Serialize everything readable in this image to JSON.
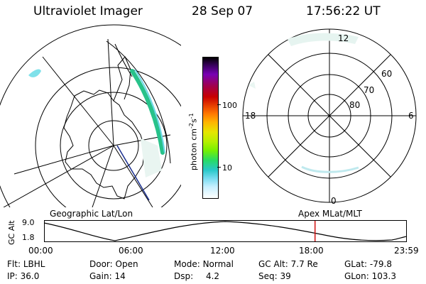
{
  "header": {
    "instrument": "Ultraviolet Imager",
    "date": "28 Sep 07",
    "time": "17:56:22 UT"
  },
  "geo_panel": {
    "title": "Geographic Lat/Lon"
  },
  "colorbar": {
    "unit_label": "photon cm",
    "unit_sup1": "-2",
    "unit_mid": "s",
    "unit_sup2": "-1",
    "tick_labels": [
      "100",
      "10"
    ],
    "colors": [
      "#000000",
      "#3c0064",
      "#7800b4",
      "#a00050",
      "#c80000",
      "#e63c00",
      "#ff7800",
      "#ffb400",
      "#e6e600",
      "#b4f000",
      "#78f000",
      "#28dc64",
      "#28c8c8",
      "#78dcf0",
      "#c8f0ff",
      "#ffffff"
    ]
  },
  "mag_panel": {
    "title": "Apex MLat/MLT",
    "mlt_labels": {
      "top": "12",
      "left": "18",
      "right": "6",
      "bottom": "0"
    },
    "mlat_labels": [
      "60",
      "70",
      "80"
    ]
  },
  "altitude_plot": {
    "axis_label": "GC Alt",
    "y_ticks": [
      "9.0",
      "1.8"
    ],
    "x_ticks": [
      "00:00",
      "06:00",
      "12:00",
      "18:00",
      "23:59"
    ],
    "current_time_fraction": 0.747
  },
  "status": {
    "flt_label": "Flt:",
    "flt_value": "LBHL",
    "ip_label": "IP:",
    "ip_value": "36.0",
    "door_label": "Door:",
    "door_value": "Open",
    "gain_label": "Gain:",
    "gain_value": "14",
    "mode_label": "Mode:",
    "mode_value": "Normal",
    "dsp_label": "Dsp:",
    "dsp_value": "4.2",
    "gcalt_label": "GC Alt:",
    "gcalt_value": "7.7 Re",
    "seq_label": "Seq:",
    "seq_value": "39",
    "glat_label": "GLat:",
    "glat_value": "-79.8",
    "glon_label": "GLon:",
    "glon_value": "103.3"
  }
}
